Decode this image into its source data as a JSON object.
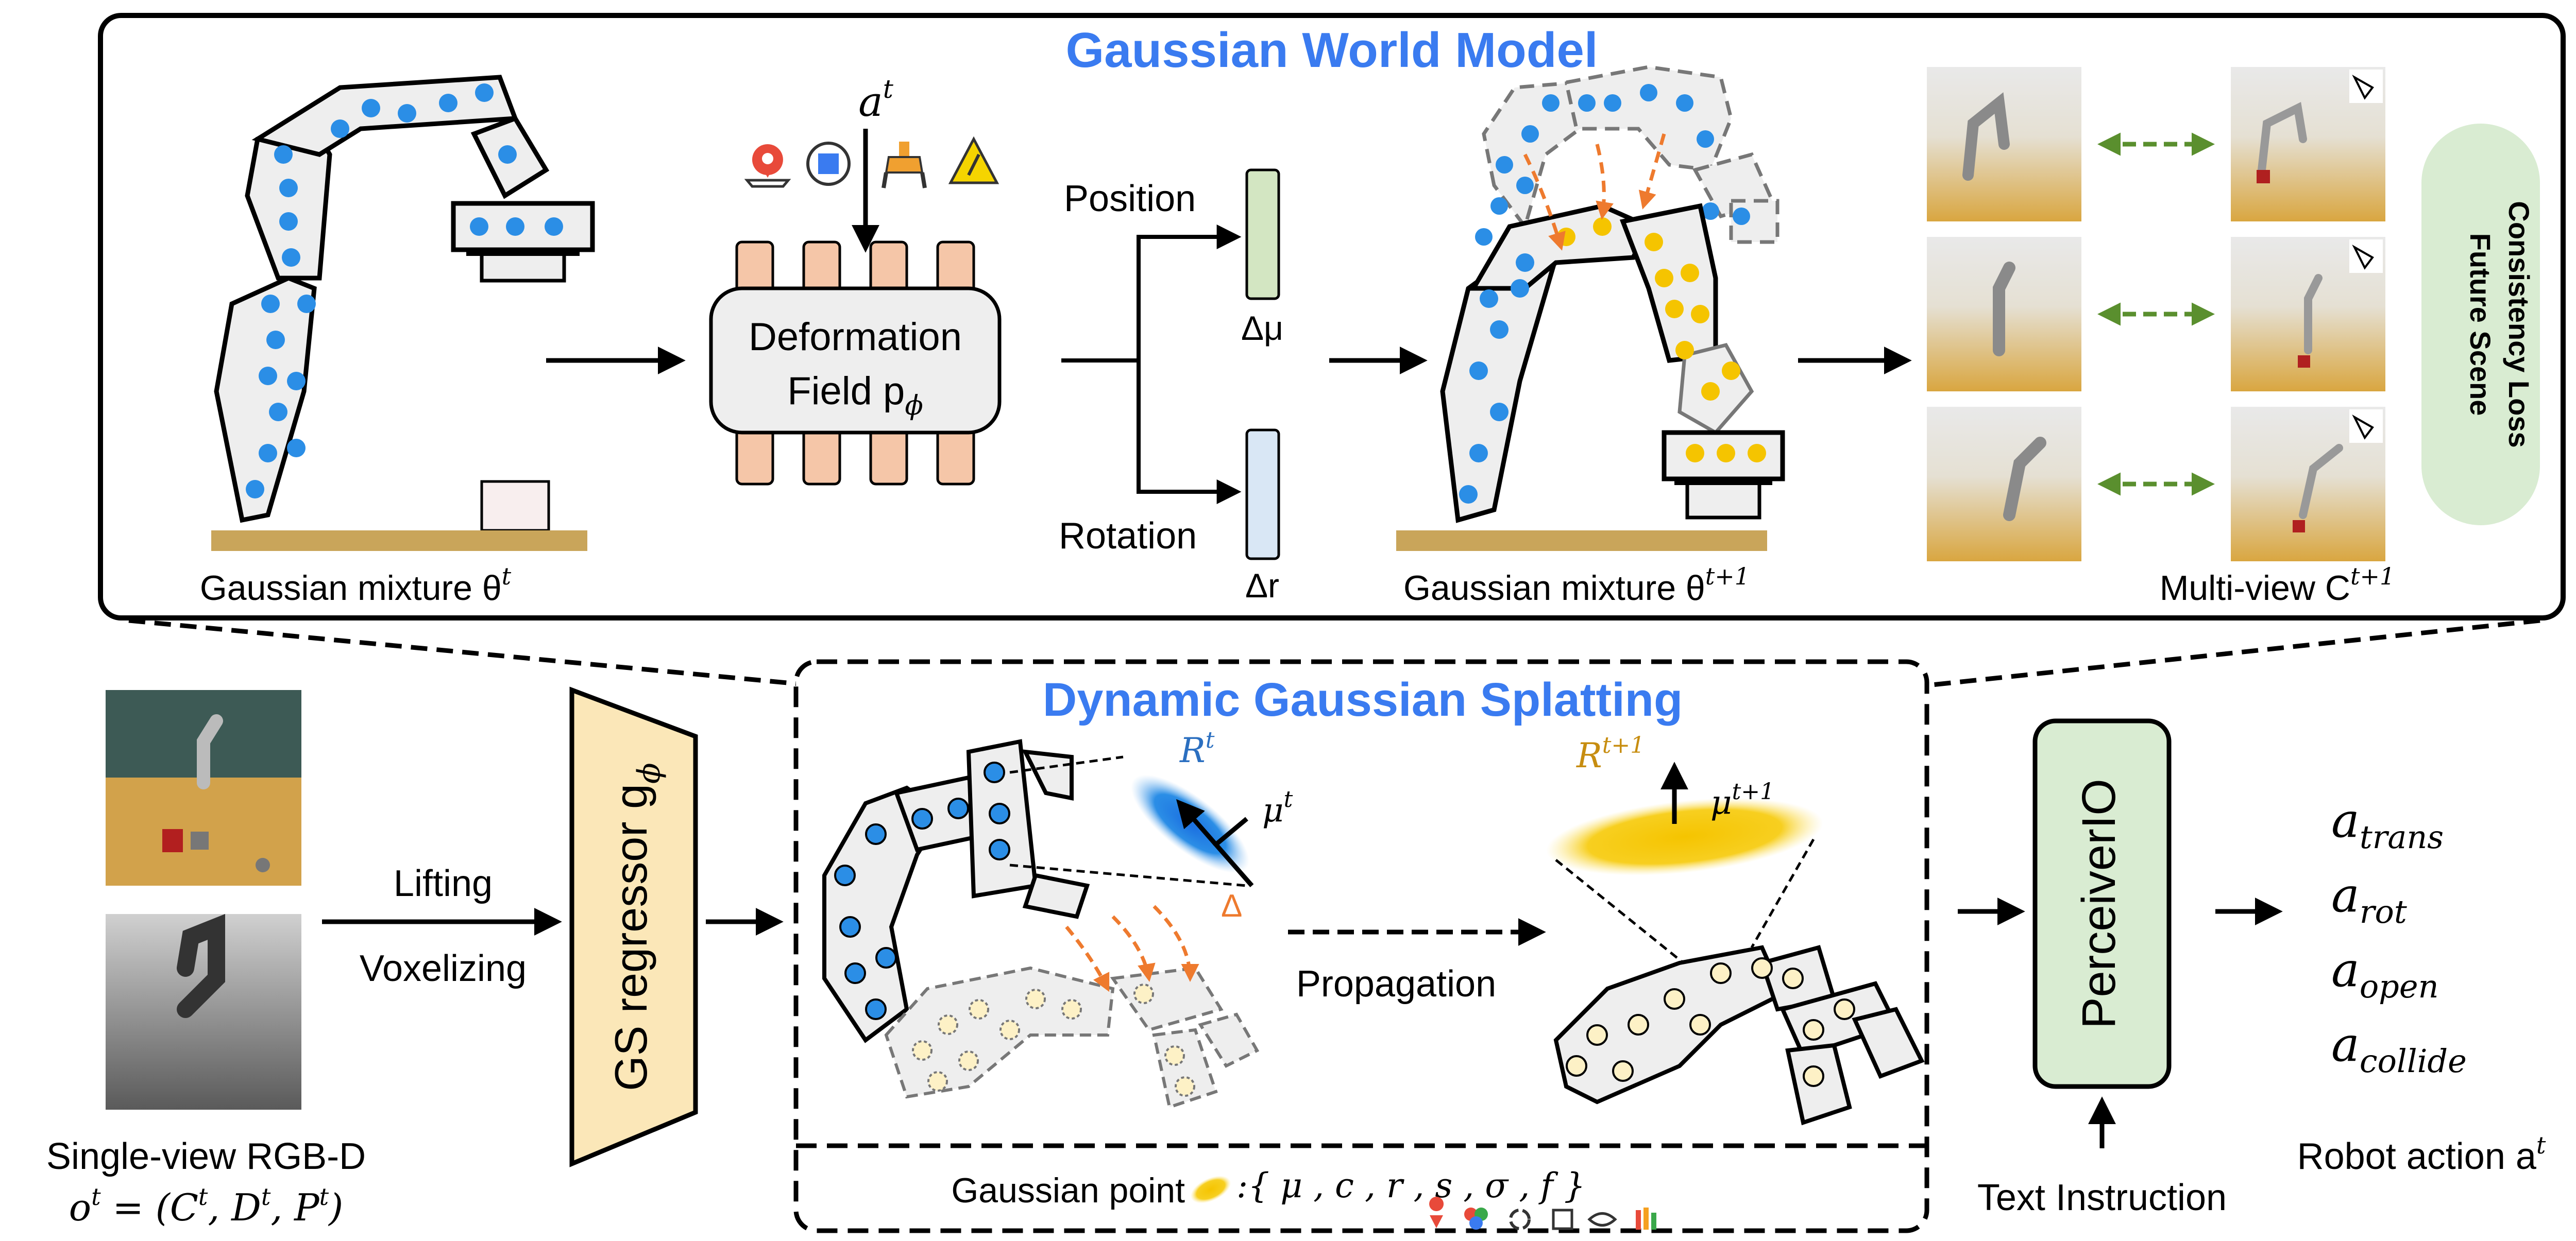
{
  "top_panel": {
    "title": "Gaussian World Model",
    "action_label": "a",
    "action_sup": "t",
    "deformation_line1": "Deformation",
    "deformation_line2": "Field p",
    "deformation_sub": "ϕ",
    "position_label": "Position",
    "rotation_label": "Rotation",
    "delta_mu": "Δμ",
    "delta_r": "Δr",
    "mixture_t_label": "Gaussian mixture θ",
    "mixture_t_sup": "t",
    "mixture_t1_label": "Gaussian mixture θ",
    "mixture_t1_sup": "t+1",
    "multiview_label": "Multi-view C",
    "multiview_sup": "t+1",
    "loss_line1": "Future Scene",
    "loss_line2": "Consistency Loss"
  },
  "bottom": {
    "input_label_line1": "Single-view RGB-D",
    "input_label_line2": "o",
    "input_label_sup": "t",
    "input_label_rest": " = (C",
    "lifting_label": "Lifting",
    "voxelizing_label": "Voxelizing",
    "regressor_label": "GS regressor g",
    "regressor_sub": "ϕ",
    "dgs_title": "Dynamic Gaussian Splatting",
    "R_t": "R",
    "R_t_sup": "t",
    "mu_t": "μ",
    "mu_t_sup": "t",
    "delta": "Δ",
    "R_t1": "R",
    "R_t1_sup": "t+1",
    "mu_t1": "μ",
    "mu_t1_sup": "t+1",
    "propagation_label": "Propagation",
    "gaussian_point_label": "Gaussian point",
    "gaussian_point_attrs": ":{ μ , c , r , s , σ , f }",
    "perceiver_label": "PerceiverIO",
    "text_instruction": "Text Instruction",
    "actions": [
      "a",
      "a",
      "a",
      "a"
    ],
    "action_subs": [
      "trans",
      "rot",
      "open",
      "collide"
    ],
    "robot_action_label": "Robot action a",
    "robot_action_sup": "t"
  },
  "colors": {
    "title_blue": "#3a7bf0",
    "gaussian_blue": "#2b8ee6",
    "gaussian_yellow": "#f5c400",
    "orange_arrow": "#ee7a2e",
    "green_arrow": "#5a8f2e",
    "pink_column": "#f5c6a8",
    "green_bar": "#d3e6c2",
    "blue_bar": "#d9e7f5",
    "tan_table": "#c9a55a",
    "loss_pill": "#d9ecd2",
    "regressor_fill": "#fbe7b8"
  }
}
